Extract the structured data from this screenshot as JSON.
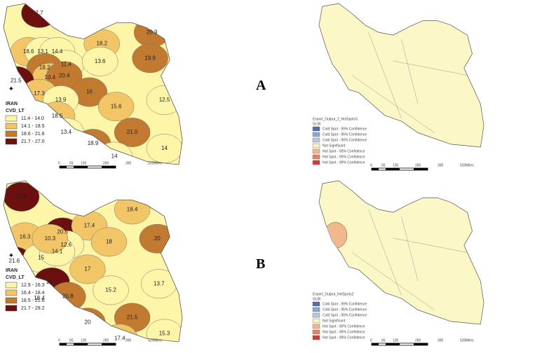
{
  "panels": [
    {
      "tag": "A",
      "choropleth": {
        "labels": [
          "7.7",
          "20.9",
          "18.2",
          "18.6",
          "13.1",
          "14.4",
          "11.4",
          "13.6",
          "19.9",
          "18.2",
          "10.4",
          "20.4",
          "21.5",
          "17.3",
          "16",
          "12.5",
          "15.6",
          "13.9",
          "18.5",
          "21.0",
          "13.4",
          "18.9",
          "14",
          "14"
        ],
        "legend_title": "IRAN",
        "legend_subtitle": "CVD_LT",
        "classes": [
          "11.4 - 14.0",
          "14.1 - 18.5",
          "18.6 - 21.6",
          "21.7 - 27.0"
        ]
      },
      "hotspot": {
        "legend_title": "Export_Output_2_HotSpots3",
        "legend_subtitle": "GLBI",
        "classes": [
          "Cold Spot - 99% Confidence",
          "Cold Spot - 95% Confidence",
          "Cold Spot - 90% Confidence",
          "Not Significant",
          "Hot Spot - 90% Confidence",
          "Hot Spot - 95% Confidence",
          "Hot Spot - 99% Confidence"
        ]
      },
      "scale": [
        "0",
        "65",
        "130",
        "260",
        "390",
        "520",
        "Miles"
      ]
    },
    {
      "tag": "B",
      "choropleth": {
        "labels": [
          "21.2",
          "16.3",
          "20.5",
          "17.4",
          "12.6",
          "18.4",
          "18",
          "20",
          "21.6",
          "15",
          "14.1",
          "17",
          "29.7",
          "20.8",
          "15.2",
          "13.7",
          "10.3",
          "20",
          "21.5",
          "17.4",
          "15.3",
          "18.4"
        ],
        "legend_title": "IRAN",
        "legend_subtitle": "CVD_LT",
        "classes": [
          "12.9 - 16.3",
          "16.4 - 18.4",
          "18.5 - 21.6",
          "21.7 - 29.2"
        ]
      },
      "hotspot": {
        "legend_title": "Export_Output_HotSpots2",
        "legend_subtitle": "GLBI",
        "classes": [
          "Cold Spot - 99% Confidence",
          "Cold Spot - 95% Confidence",
          "Cold Spot - 90% Confidence",
          "Not Significant",
          "Hot Spot - 90% Confidence",
          "Hot Spot - 95% Confidence",
          "Hot Spot - 99% Confidence"
        ]
      },
      "scale": [
        "0",
        "65",
        "130",
        "260",
        "390",
        "520",
        "Miles"
      ]
    }
  ]
}
